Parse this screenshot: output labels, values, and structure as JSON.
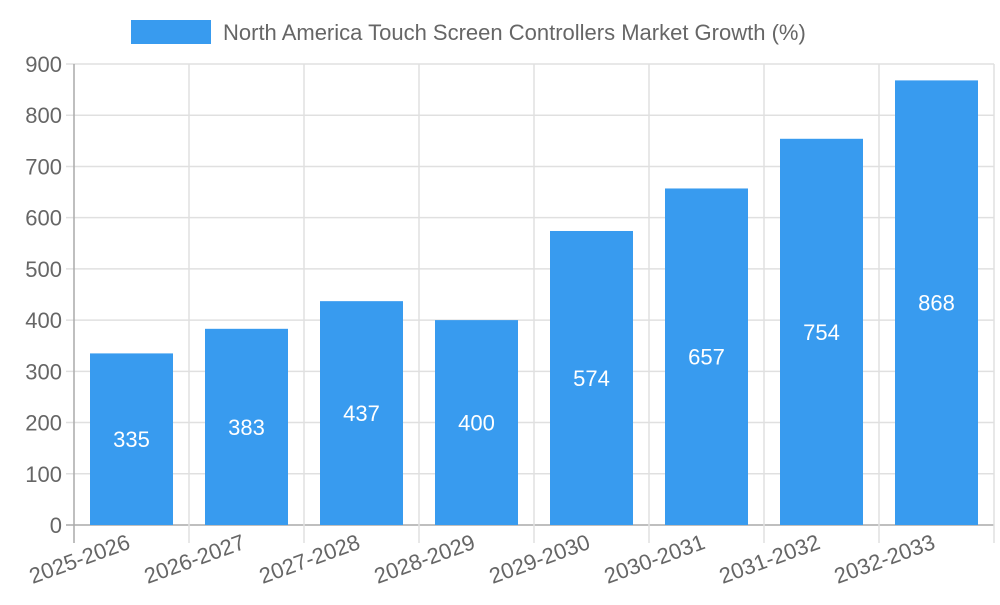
{
  "chart_data": {
    "type": "bar",
    "title": "",
    "legend": [
      {
        "label": "North America Touch Screen Controllers Market Growth (%)",
        "color": "#389BEF"
      }
    ],
    "legend_position": "top-center",
    "categories": [
      "2025-2026",
      "2026-2027",
      "2027-2028",
      "2028-2029",
      "2029-2030",
      "2030-2031",
      "2031-2032",
      "2032-2033"
    ],
    "values": [
      335,
      383,
      437,
      400,
      574,
      657,
      754,
      868
    ],
    "data_labels": [
      "335",
      "383",
      "437",
      "400",
      "574",
      "657",
      "754",
      "868"
    ],
    "xlabel": "",
    "ylabel": "",
    "ylim": [
      0,
      900
    ],
    "yticks": [
      "0",
      "100",
      "200",
      "300",
      "400",
      "500",
      "600",
      "700",
      "800",
      "900"
    ],
    "grid": true,
    "bar_color": "#389BEF"
  }
}
